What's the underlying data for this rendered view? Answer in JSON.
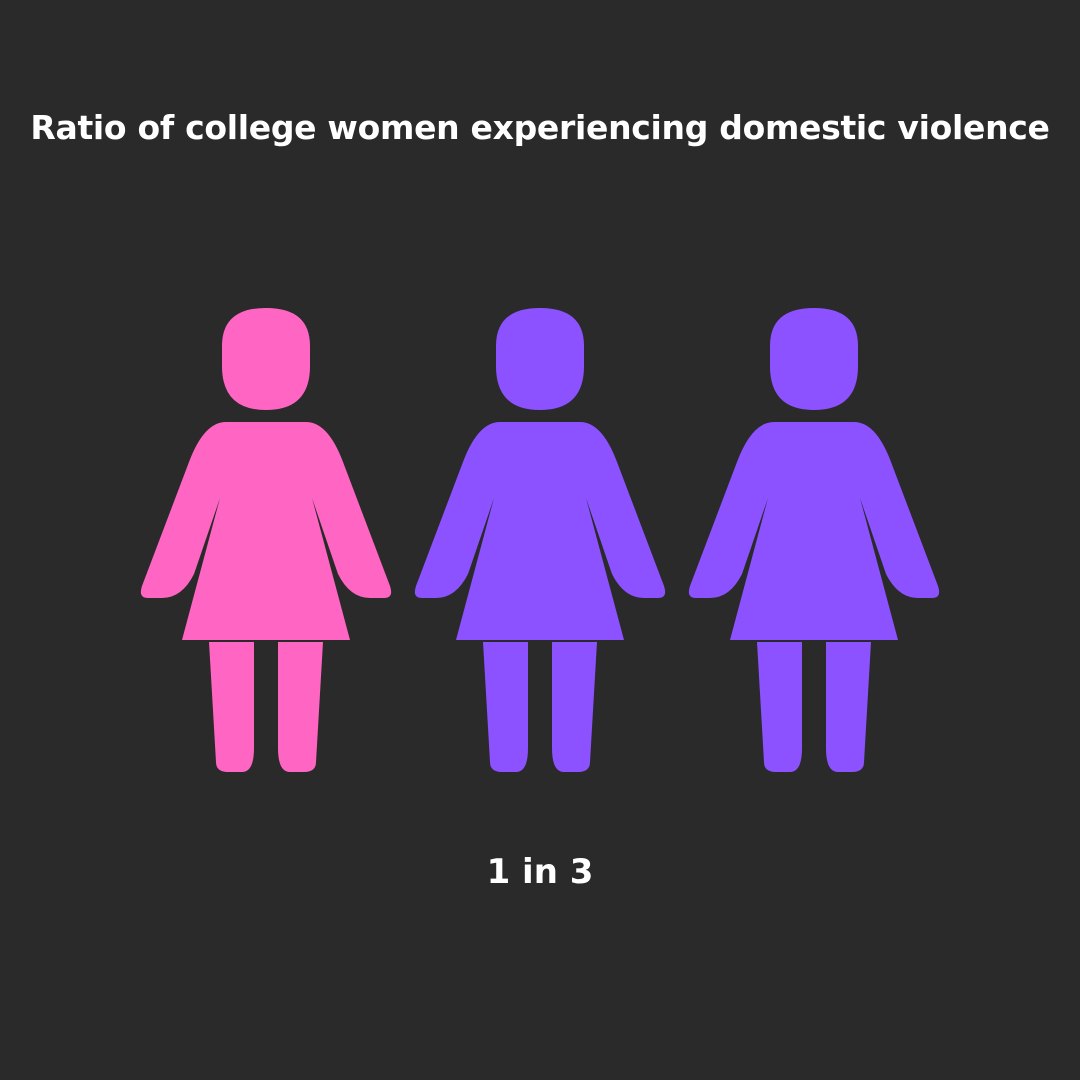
{
  "chart_data": {
    "type": "pictogram",
    "title": "Ratio of college women experiencing domestic violence",
    "value_label": "1 in 3",
    "highlighted": 1,
    "total": 3,
    "colors": {
      "highlighted": "#ff66c4",
      "other": "#8c52ff",
      "background": "#2b2a2b"
    },
    "icon": "woman-icon"
  }
}
